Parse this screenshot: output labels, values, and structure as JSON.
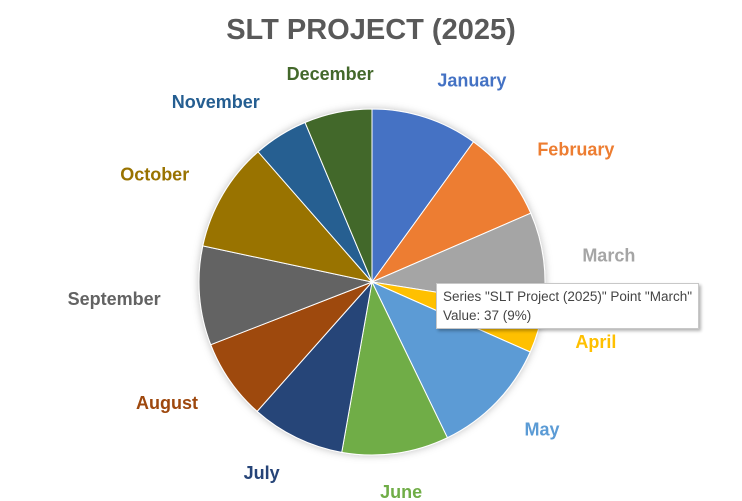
{
  "chart_data": {
    "type": "pie",
    "title": "SLT PROJECT (2025)",
    "series_name": "SLT Project (2025)",
    "categories": [
      "January",
      "February",
      "March",
      "April",
      "May",
      "June",
      "July",
      "August",
      "September",
      "October",
      "November",
      "December"
    ],
    "values": [
      41,
      35,
      37,
      17,
      46,
      41,
      36,
      31,
      38,
      42,
      21,
      26
    ],
    "colors": [
      "#4472C4",
      "#ED7D31",
      "#A5A5A5",
      "#FFC000",
      "#5B9BD5",
      "#70AD47",
      "#264478",
      "#9E480E",
      "#636363",
      "#997300",
      "#255E91",
      "#43682B"
    ],
    "legend": "none",
    "data_labels": "category names outside, colored by slice"
  },
  "tooltip": {
    "line1": "Series \"SLT Project (2025)\" Point \"March\"",
    "line2": "Value: 37 (9%)"
  }
}
